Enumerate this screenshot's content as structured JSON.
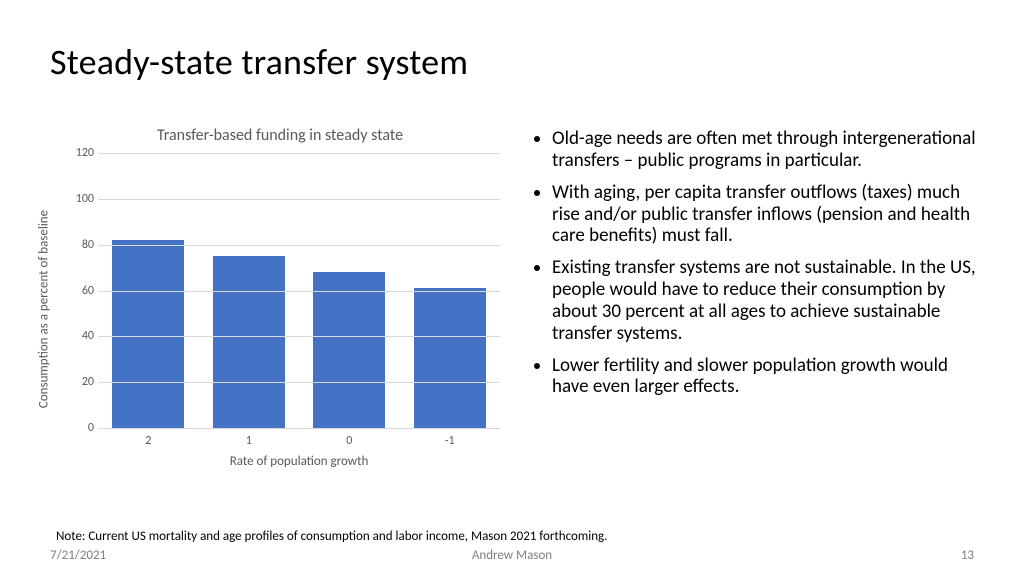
{
  "slide": {
    "title": "Steady-state transfer system",
    "note": "Note:  Current US mortality and age profiles of consumption and labor income,  Mason 2021 forthcoming.",
    "footer": {
      "date": "7/21/2021",
      "author": "Andrew Mason",
      "page": "13"
    }
  },
  "bullets": [
    "Old-age needs are often met through intergenerational transfers – public programs in particular.",
    "With aging, per capita transfer outflows (taxes) much rise and/or public transfer inflows (pension and health care benefits) must fall.",
    "Existing transfer systems are not sustainable.  In the US, people would have to reduce their consumption by about 30 percent at all ages to achieve sustainable transfer systems.",
    "Lower fertility and slower population growth would have even larger effects."
  ],
  "chart": {
    "type": "bar",
    "title": "Transfer-based funding in steady state",
    "xlabel": "Rate of population growth",
    "ylabel": "Consumption as a percent of baseline",
    "categories": [
      "2",
      "1",
      "0",
      "-1"
    ],
    "values": [
      82,
      75,
      68,
      61
    ],
    "ylim": [
      0,
      120
    ],
    "ytick_step": 20,
    "bar_color": "#4472c4",
    "grid_color": "#d9d9d9",
    "axis_color": "#bfbfbf",
    "text_color": "#595959",
    "title_fontsize": 16,
    "label_fontsize": 13,
    "tick_fontsize": 12,
    "bar_width": 0.72,
    "background_color": "#ffffff"
  }
}
